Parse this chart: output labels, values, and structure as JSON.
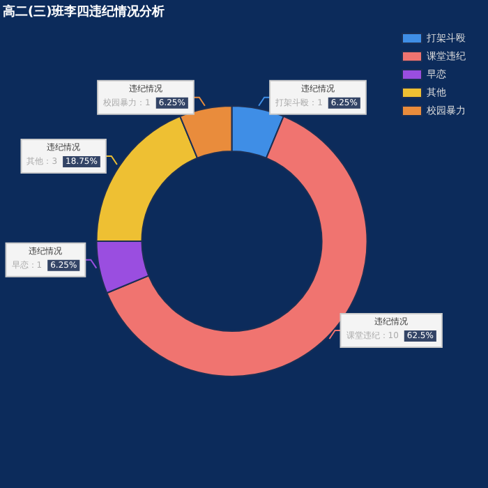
{
  "chart_data": {
    "type": "donut",
    "title": "高二(三)班李四违纪情况分析",
    "categories": [
      "打架斗殴",
      "课堂违纪",
      "早恋",
      "其他",
      "校园暴力"
    ],
    "series": [
      {
        "name": "违纪情况",
        "values": [
          6.25,
          62.5,
          6.25,
          18.75,
          6.25
        ]
      }
    ],
    "value_labels": [
      "6.25%",
      "62.5%",
      "6.25%",
      "18.75%",
      "6.25%"
    ],
    "annotations": [
      "：1",
      "：10",
      "：1",
      "：3",
      "：1"
    ],
    "colors": [
      "#3f8ee6",
      "#f07470",
      "#9a4ee0",
      "#eec033",
      "#e98c3c"
    ],
    "legend": "top right"
  }
}
